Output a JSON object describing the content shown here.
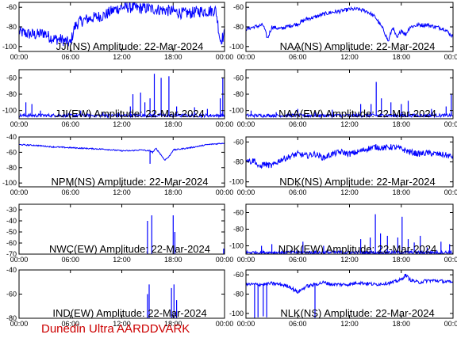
{
  "footer": {
    "text": "Dunedin Ultra AARDDVARK",
    "color": "#cc0000"
  },
  "style": {
    "trace_color": "#0000ff",
    "axis_color": "#000000",
    "background": "#ffffff"
  },
  "chart_data": [
    {
      "type": "line",
      "title": "JJI(NS) Amplitude: 22-Mar-2024",
      "ylim": [
        -105,
        -55
      ],
      "yticks": [
        -100,
        -80,
        -60
      ],
      "x_ticks": [
        "00:00",
        "06:00",
        "12:00",
        "18:00",
        "00:00"
      ],
      "xlim": [
        0,
        24
      ],
      "noise": 6,
      "series": [
        {
          "x": [
            0,
            1,
            2,
            3,
            3.5,
            4,
            5,
            6,
            6.5,
            7,
            8,
            9,
            10,
            11,
            12,
            13,
            14,
            15,
            16,
            17,
            18,
            19,
            20,
            21,
            22,
            23,
            23.5,
            24
          ],
          "y": [
            -85,
            -87,
            -88,
            -86,
            -90,
            -92,
            -93,
            -97,
            -80,
            -75,
            -72,
            -70,
            -68,
            -63,
            -60,
            -60,
            -61,
            -61,
            -62,
            -63,
            -64,
            -66,
            -66,
            -64,
            -64,
            -63,
            -94,
            -88
          ]
        }
      ]
    },
    {
      "type": "line",
      "title": "NAA(NS) Amplitude: 22-Mar-2024",
      "ylim": [
        -105,
        -55
      ],
      "yticks": [
        -100,
        -80,
        -60
      ],
      "x_ticks": [
        "00:00",
        "06:00",
        "12:00",
        "18:00",
        "00:00"
      ],
      "xlim": [
        0,
        24
      ],
      "noise": 2,
      "series": [
        {
          "x": [
            0,
            1,
            2,
            2.5,
            3,
            4,
            5,
            6,
            7,
            8,
            9,
            10,
            11,
            12,
            13,
            14,
            15,
            16,
            16.5,
            17,
            17.5,
            18,
            18.5,
            19,
            20,
            21,
            22,
            23,
            24
          ],
          "y": [
            -82,
            -80,
            -78,
            -92,
            -80,
            -82,
            -79,
            -77,
            -72,
            -70,
            -67,
            -65,
            -64,
            -62,
            -62,
            -64,
            -70,
            -84,
            -95,
            -80,
            -92,
            -83,
            -88,
            -80,
            -78,
            -78,
            -80,
            -82,
            -90
          ]
        }
      ]
    },
    {
      "type": "line",
      "title": "JJI(EW) Amplitude: 22-Mar-2024",
      "ylim": [
        -110,
        -50
      ],
      "yticks": [
        -100,
        -80,
        -60
      ],
      "x_ticks": [
        "00:00",
        "06:00",
        "12:00",
        "18:00",
        "00:00"
      ],
      "xlim": [
        0,
        24
      ],
      "noise": 2,
      "spikes": [
        [
          0.8,
          -90
        ],
        [
          1.5,
          -92
        ],
        [
          2.5,
          -100
        ],
        [
          4.6,
          -104
        ],
        [
          7.2,
          -100
        ],
        [
          9.8,
          -102
        ],
        [
          11.5,
          -103
        ],
        [
          13.0,
          -95
        ],
        [
          13.3,
          -80
        ],
        [
          14.2,
          -78
        ],
        [
          14.7,
          -90
        ],
        [
          15.3,
          -85
        ],
        [
          15.8,
          -55
        ],
        [
          16.6,
          -60
        ],
        [
          17.5,
          -58
        ],
        [
          18.4,
          -95
        ],
        [
          20.5,
          -96
        ],
        [
          22.0,
          -98
        ],
        [
          23.5,
          -85
        ],
        [
          23.8,
          -60
        ]
      ],
      "series": [
        {
          "x": [
            0,
            6,
            12,
            18,
            24
          ],
          "y": [
            -106,
            -106,
            -106,
            -106,
            -106
          ]
        }
      ]
    },
    {
      "type": "line",
      "title": "NAA(EW) Amplitude: 22-Mar-2024",
      "ylim": [
        -110,
        -50
      ],
      "yticks": [
        -100,
        -80,
        -60
      ],
      "x_ticks": [
        "00:00",
        "06:00",
        "12:00",
        "18:00",
        "00:00"
      ],
      "xlim": [
        0,
        24
      ],
      "noise": 2,
      "spikes": [
        [
          0.6,
          -100
        ],
        [
          3.5,
          -102
        ],
        [
          6.0,
          -98
        ],
        [
          8.0,
          -102
        ],
        [
          10.0,
          -99
        ],
        [
          13.3,
          -92
        ],
        [
          14.5,
          -92
        ],
        [
          15.1,
          -65
        ],
        [
          15.7,
          -85
        ],
        [
          16.8,
          -90
        ],
        [
          18.0,
          -92
        ],
        [
          18.8,
          -88
        ],
        [
          21.5,
          -98
        ],
        [
          23.2,
          -95
        ],
        [
          23.8,
          -80
        ]
      ],
      "series": [
        {
          "x": [
            0,
            6,
            12,
            18,
            24
          ],
          "y": [
            -106,
            -106,
            -106,
            -106,
            -106
          ]
        }
      ]
    },
    {
      "type": "line",
      "title": "NPM(NS) Amplitude: 22-Mar-2024",
      "ylim": [
        -105,
        -40
      ],
      "yticks": [
        -100,
        -80,
        -60,
        -40
      ],
      "x_ticks": [
        "00:00",
        "06:00",
        "12:00",
        "18:00",
        "00:00"
      ],
      "xlim": [
        0,
        24
      ],
      "noise": 0.8,
      "spikes": [
        [
          15.3,
          -75
        ]
      ],
      "series": [
        {
          "x": [
            0,
            2,
            4,
            6,
            8,
            10,
            12,
            13,
            14,
            14.5,
            15,
            15.3,
            15.6,
            16,
            16.5,
            17,
            17.5,
            18,
            20,
            22,
            24
          ],
          "y": [
            -50,
            -51,
            -53,
            -54,
            -55,
            -56,
            -58,
            -58,
            -57,
            -57,
            -58,
            -58,
            -60,
            -55,
            -62,
            -70,
            -66,
            -57,
            -54,
            -50,
            -48
          ]
        }
      ]
    },
    {
      "type": "line",
      "title": "NDK(NS) Amplitude: 22-Mar-2024",
      "ylim": [
        -105,
        -55
      ],
      "yticks": [
        -100,
        -80,
        -60
      ],
      "x_ticks": [
        "00:00",
        "06:00",
        "12:00",
        "18:00",
        "00:00"
      ],
      "xlim": [
        0,
        24
      ],
      "noise": 3,
      "series": [
        {
          "x": [
            0,
            0.5,
            1,
            1.5,
            2,
            3,
            4,
            5,
            6,
            7,
            8,
            9,
            10,
            11,
            12,
            13,
            14,
            15,
            16,
            17,
            18,
            19,
            20,
            21,
            22,
            23,
            24
          ],
          "y": [
            -76,
            -80,
            -78,
            -86,
            -82,
            -84,
            -78,
            -75,
            -72,
            -74,
            -72,
            -76,
            -72,
            -70,
            -72,
            -70,
            -67,
            -65,
            -66,
            -65,
            -67,
            -70,
            -72,
            -71,
            -72,
            -73,
            -75
          ]
        }
      ]
    },
    {
      "type": "line",
      "title": "NWC(EW) Amplitude: 22-Mar-2024",
      "ylim": [
        -70,
        -25
      ],
      "yticks": [
        -70,
        -60,
        -50,
        -40,
        -30
      ],
      "x_ticks": [
        "00:00",
        "06:00",
        "12:00",
        "18:00",
        "00:00"
      ],
      "xlim": [
        0,
        24
      ],
      "noise": 0,
      "spikes": [
        [
          15.0,
          -40
        ],
        [
          15.5,
          -35
        ],
        [
          18.0,
          -35
        ],
        [
          18.2,
          -50
        ],
        [
          23.9,
          -65
        ]
      ],
      "series": [
        {
          "x": [
            0,
            6,
            12,
            18,
            24
          ],
          "y": [
            -70,
            -70,
            -70,
            -70,
            -70
          ]
        }
      ]
    },
    {
      "type": "line",
      "title": "NDK(EW) Amplitude: 22-Mar-2024",
      "ylim": [
        -110,
        -50
      ],
      "yticks": [
        -100,
        -80,
        -60
      ],
      "x_ticks": [
        "00:00",
        "06:00",
        "12:00",
        "18:00",
        "00:00"
      ],
      "xlim": [
        0,
        24
      ],
      "noise": 2,
      "spikes": [
        [
          1.8,
          -100
        ],
        [
          3.0,
          -98
        ],
        [
          6.6,
          -95
        ],
        [
          9.0,
          -100
        ],
        [
          13.3,
          -92
        ],
        [
          14.4,
          -90
        ],
        [
          15.0,
          -62
        ],
        [
          15.6,
          -85
        ],
        [
          16.4,
          -88
        ],
        [
          17.6,
          -90
        ],
        [
          18.1,
          -65
        ],
        [
          18.8,
          -92
        ],
        [
          19.5,
          -96
        ],
        [
          20.2,
          -88
        ],
        [
          21.0,
          -102
        ],
        [
          22.6,
          -95
        ],
        [
          23.6,
          -98
        ]
      ],
      "series": [
        {
          "x": [
            0,
            6,
            12,
            18,
            24
          ],
          "y": [
            -108,
            -108,
            -108,
            -108,
            -108
          ]
        }
      ]
    },
    {
      "type": "line",
      "title": "IND(EW) Amplitude: 22-Mar-2024",
      "ylim": [
        -80,
        -40
      ],
      "yticks": [
        -80,
        -60,
        -40
      ],
      "x_ticks": [
        "00:00",
        "06:00",
        "12:00",
        "18:00",
        "00:00"
      ],
      "xlim": [
        0,
        24
      ],
      "noise": 0,
      "spikes": [
        [
          15.0,
          -60
        ],
        [
          15.2,
          -52
        ],
        [
          17.8,
          -55
        ],
        [
          18.1,
          -52
        ],
        [
          18.4,
          -65
        ]
      ],
      "series": [
        {
          "x": [
            0,
            6,
            12,
            18,
            24
          ],
          "y": [
            -80,
            -80,
            -80,
            -80,
            -80
          ]
        }
      ]
    },
    {
      "type": "line",
      "title": "NLK(NS) Amplitude: 22-Mar-2024",
      "ylim": [
        -105,
        -55
      ],
      "yticks": [
        -100,
        -80,
        -60
      ],
      "x_ticks": [
        "00:00",
        "06:00",
        "12:00",
        "18:00",
        "00:00"
      ],
      "xlim": [
        0,
        24
      ],
      "noise": 1.8,
      "spikes": [
        [
          1.0,
          -105
        ],
        [
          1.4,
          -104
        ],
        [
          2.0,
          -103
        ],
        [
          2.4,
          -104
        ],
        [
          8.0,
          -105
        ]
      ],
      "series": [
        {
          "x": [
            0,
            1,
            2,
            3,
            4,
            5,
            6,
            7,
            8,
            9,
            10,
            11,
            12,
            13,
            14,
            15,
            16,
            17,
            18,
            18.5,
            19,
            20,
            21,
            22,
            23,
            24
          ],
          "y": [
            -70,
            -70,
            -70,
            -69,
            -70,
            -72,
            -78,
            -72,
            -70,
            -68,
            -70,
            -70,
            -70,
            -68,
            -69,
            -70,
            -69,
            -68,
            -65,
            -60,
            -65,
            -68,
            -66,
            -66,
            -67,
            -68
          ]
        }
      ]
    }
  ]
}
